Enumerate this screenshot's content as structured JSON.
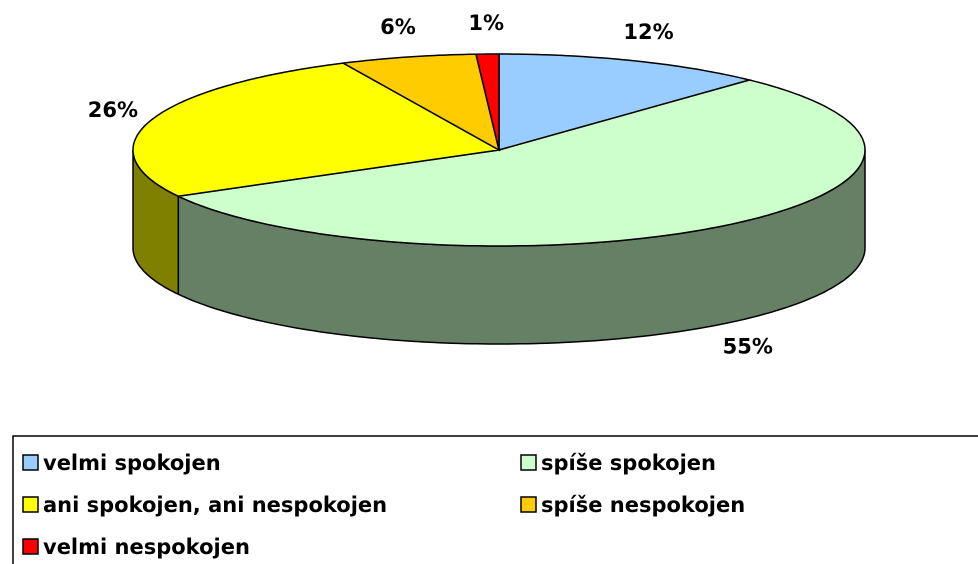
{
  "chart_data": {
    "type": "pie",
    "categories": [
      "velmi spokojen",
      "spíše spokojen",
      "ani spokojen, ani nespokojen",
      "spíše nespokojen",
      "velmi nespokojen"
    ],
    "values": [
      12,
      55,
      26,
      6,
      1
    ],
    "value_labels": [
      "12%",
      "55%",
      "26%",
      "6%",
      "1%"
    ],
    "colors": [
      "#99ccff",
      "#ccffcc",
      "#ffff00",
      "#ffcc00",
      "#ff0000"
    ]
  }
}
